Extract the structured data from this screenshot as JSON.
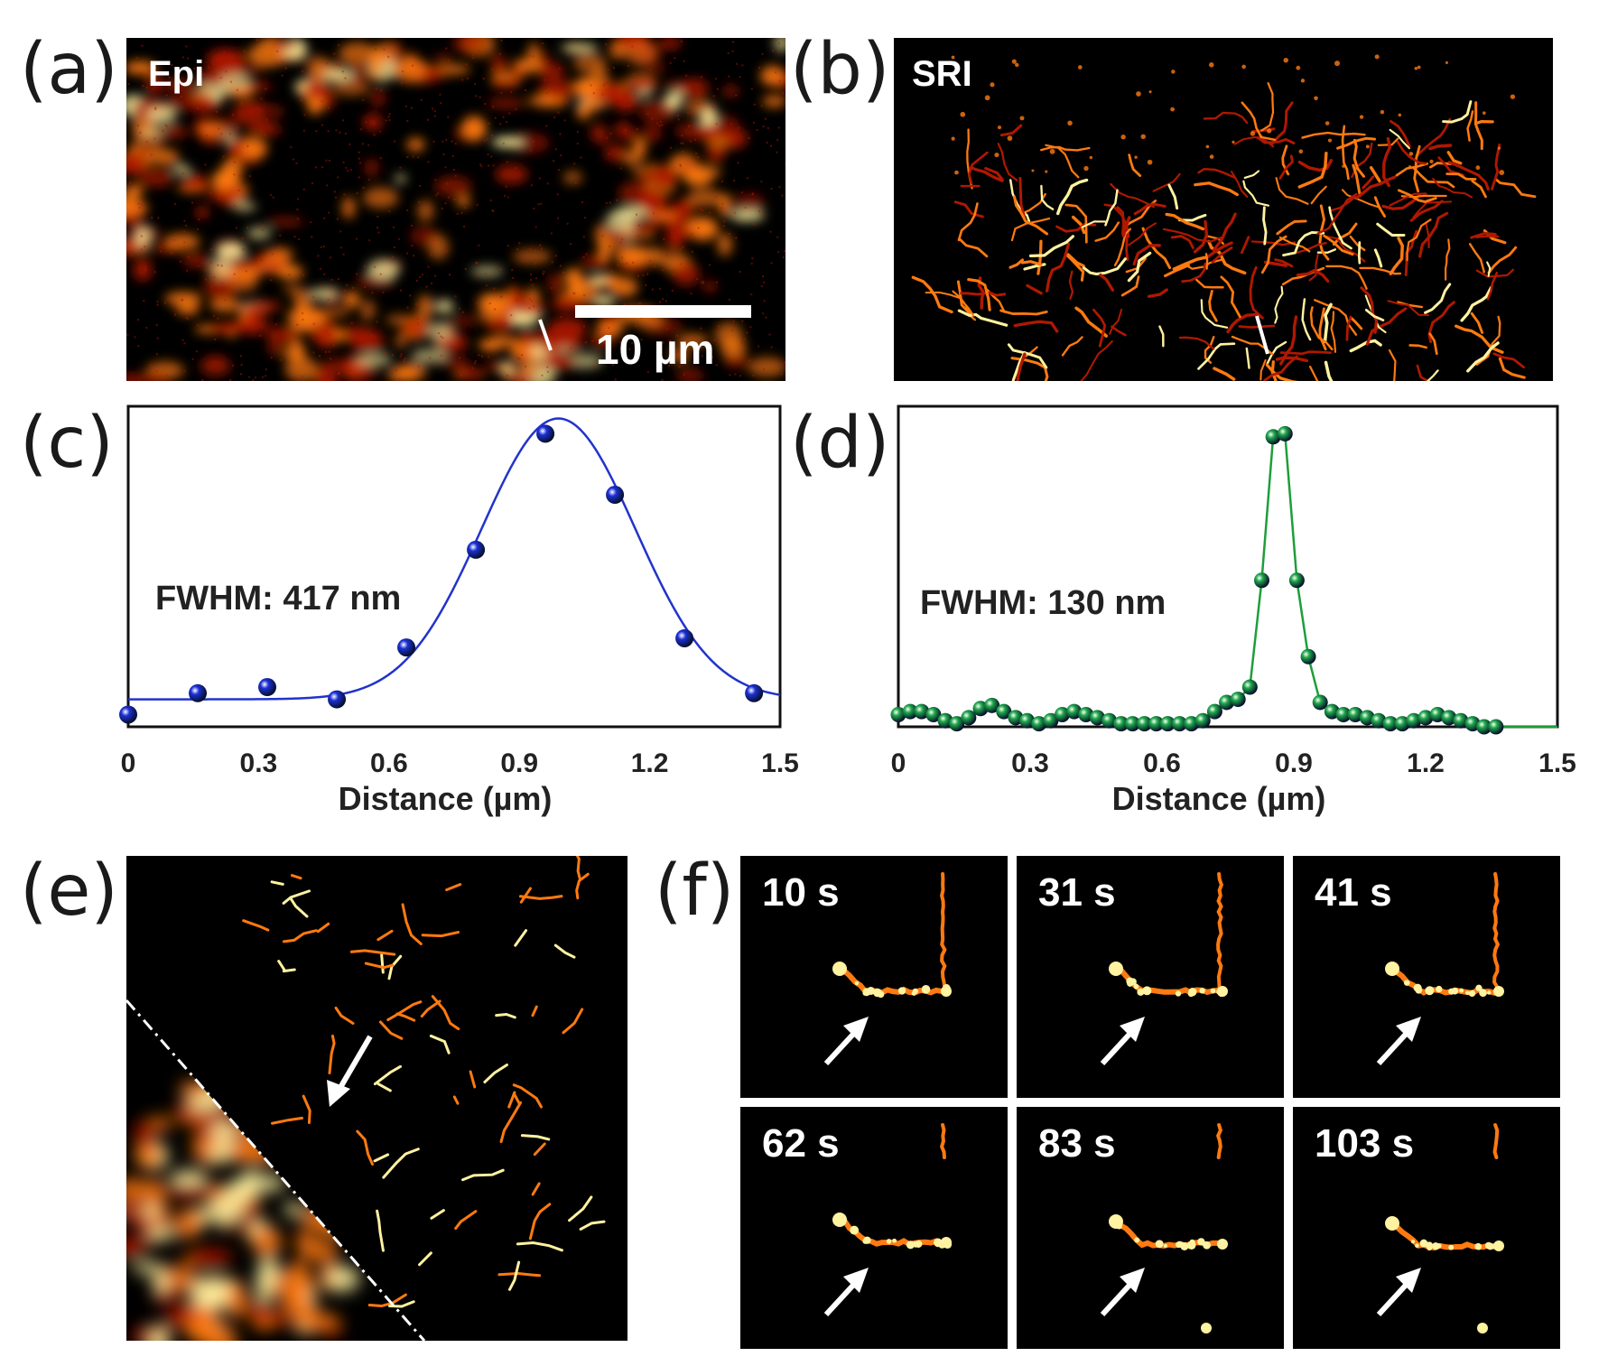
{
  "panels": {
    "a": {
      "letter": "(a)",
      "label": "Epi",
      "scalebar": "10 µm"
    },
    "b": {
      "letter": "(b)",
      "label": "SRI"
    },
    "c": {
      "letter": "(c)"
    },
    "d": {
      "letter": "(d)"
    },
    "e": {
      "letter": "(e)"
    },
    "f": {
      "letter": "(f)"
    }
  },
  "colors": {
    "epi_fit": "#2233cc",
    "epi_points": "#1b2fd6",
    "sri_fit": "#1e9e3a",
    "sri_points": "#1fa84a",
    "hot_bright": "#fff2a0",
    "hot_mid": "#ff7a10",
    "hot_low": "#b01800"
  },
  "chart_data": [
    {
      "type": "scatter",
      "panel": "c",
      "annotation": "FWHM: 417 nm",
      "xlabel": "Distance (µm)",
      "ylabel": "",
      "xlim": [
        0,
        1.5
      ],
      "ylim": [
        0,
        1.05
      ],
      "xticks": [
        "0",
        "0.3",
        "0.6",
        "0.9",
        "1.2",
        "1.5"
      ],
      "x": [
        0.0,
        0.16,
        0.32,
        0.48,
        0.64,
        0.8,
        0.96,
        1.12,
        1.28,
        1.44
      ],
      "y": [
        0.04,
        0.11,
        0.13,
        0.09,
        0.26,
        0.58,
        0.96,
        0.76,
        0.29,
        0.11
      ],
      "fit": {
        "type": "gaussian",
        "baseline": 0.09,
        "amplitude": 0.92,
        "center": 0.99,
        "fwhm": 0.417
      }
    },
    {
      "type": "scatter",
      "panel": "d",
      "annotation": "FWHM: 130 nm",
      "xlabel": "Distance (µm)",
      "ylabel": "",
      "xlim": [
        0,
        1.5
      ],
      "ylim": [
        0,
        1.05
      ],
      "xticks": [
        "0",
        "0.3",
        "0.6",
        "0.9",
        "1.2",
        "1.5"
      ],
      "x": [
        0.0,
        0.027,
        0.053,
        0.08,
        0.107,
        0.133,
        0.16,
        0.187,
        0.213,
        0.24,
        0.267,
        0.293,
        0.32,
        0.347,
        0.373,
        0.4,
        0.427,
        0.453,
        0.48,
        0.507,
        0.533,
        0.56,
        0.587,
        0.613,
        0.64,
        0.667,
        0.693,
        0.72,
        0.747,
        0.773,
        0.8,
        0.827,
        0.853,
        0.88,
        0.907,
        0.933,
        0.96,
        0.987,
        1.013,
        1.04,
        1.067,
        1.093,
        1.12,
        1.147,
        1.173,
        1.2,
        1.227,
        1.253,
        1.28,
        1.307,
        1.333,
        1.36
      ],
      "y": [
        0.04,
        0.05,
        0.05,
        0.04,
        0.02,
        0.01,
        0.03,
        0.06,
        0.07,
        0.05,
        0.03,
        0.02,
        0.01,
        0.02,
        0.04,
        0.05,
        0.04,
        0.03,
        0.02,
        0.01,
        0.01,
        0.01,
        0.01,
        0.01,
        0.01,
        0.01,
        0.02,
        0.05,
        0.08,
        0.09,
        0.13,
        0.48,
        0.95,
        0.96,
        0.48,
        0.23,
        0.08,
        0.05,
        0.04,
        0.04,
        0.03,
        0.02,
        0.01,
        0.01,
        0.02,
        0.03,
        0.04,
        0.03,
        0.02,
        0.01,
        0.0,
        0.0
      ]
    }
  ],
  "timelapse": {
    "frames": [
      "10 s",
      "31 s",
      "41 s",
      "62 s",
      "83 s",
      "103 s"
    ]
  }
}
